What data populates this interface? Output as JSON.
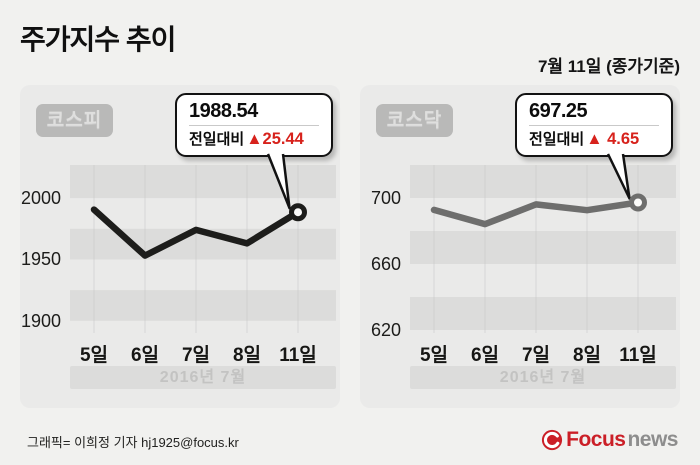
{
  "header": {
    "title": "주가지수 추이",
    "date_note": "7월 11일 (종가기준)"
  },
  "footer": {
    "credit": "그래픽= 이희정 기자 hj1925@focus.kr",
    "logo": {
      "brand_primary": "Focus",
      "brand_secondary": "news"
    }
  },
  "colors": {
    "page_bg": "#f1f1ef",
    "card_bg": "#eaeae9",
    "stripe_dark": "#dcdcdb",
    "gridline": "#c8c8c7",
    "badge_bg": "#b9b9b8",
    "badge_text": "#dfdfde",
    "delta_red": "#d7221c",
    "logo_red": "#cb1f27",
    "kospi_line": "#1d1d1b",
    "kosdaq_line": "#6e6e6d"
  },
  "chart_data": [
    {
      "type": "line",
      "title": "코스피",
      "categories": [
        "5일",
        "6일",
        "7일",
        "8일",
        "11일"
      ],
      "values": [
        1990.6,
        1953.1,
        1974.1,
        1963.1,
        1988.54
      ],
      "yticks": [
        2000,
        1950,
        1900
      ],
      "ylim": [
        1890,
        2027
      ],
      "xlabel_band": "2016년 7월",
      "legend_position": "none",
      "grid": "horizontal-stripes",
      "line_color": "#1d1d1b",
      "callout": {
        "value": "1988.54",
        "label": "전일대비",
        "change": "▲25.44"
      }
    },
    {
      "type": "line",
      "title": "코스닥",
      "categories": [
        "5일",
        "6일",
        "7일",
        "8일",
        "11일"
      ],
      "values": [
        692.8,
        684.2,
        696.1,
        692.6,
        697.25
      ],
      "yticks": [
        700,
        660,
        620
      ],
      "ylim": [
        618.2,
        720
      ],
      "xlabel_band": "2016년 7월",
      "legend_position": "none",
      "grid": "horizontal-stripes",
      "line_color": "#6e6e6d",
      "callout": {
        "value": "697.25",
        "label": "전일대비",
        "change": "▲ 4.65"
      }
    }
  ]
}
